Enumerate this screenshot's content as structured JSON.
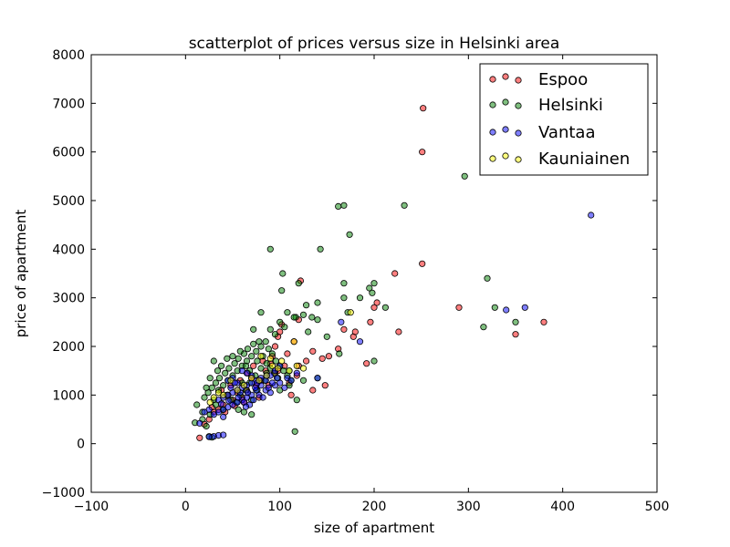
{
  "chart_data": {
    "type": "scatter",
    "title": "scatterplot of prices versus size in Helsinki area",
    "xlabel": "size of apartment",
    "ylabel": "price of apartment",
    "xlim": [
      -100,
      500
    ],
    "ylim": [
      -1000,
      8000
    ],
    "xticks": [
      -100,
      0,
      100,
      200,
      300,
      400,
      500
    ],
    "yticks": [
      -1000,
      0,
      1000,
      2000,
      3000,
      4000,
      5000,
      6000,
      7000,
      8000
    ],
    "xtick_labels": [
      "−100",
      "0",
      "100",
      "200",
      "300",
      "400",
      "500"
    ],
    "ytick_labels": [
      "−1000",
      "0",
      "1000",
      "2000",
      "3000",
      "4000",
      "5000",
      "6000",
      "7000",
      "8000"
    ],
    "grid": false,
    "legend_position": "top-right",
    "series": [
      {
        "name": "Espoo",
        "color": "#ff0000",
        "points": [
          [
            252,
            6900
          ],
          [
            251,
            6000
          ],
          [
            251,
            3700
          ],
          [
            222,
            3500
          ],
          [
            290,
            2800
          ],
          [
            380,
            2500
          ],
          [
            350,
            2250
          ],
          [
            226,
            2300
          ],
          [
            203,
            2900
          ],
          [
            200,
            2800
          ],
          [
            196,
            2500
          ],
          [
            192,
            1650
          ],
          [
            178,
            2200
          ],
          [
            180,
            2300
          ],
          [
            168,
            2350
          ],
          [
            162,
            1950
          ],
          [
            152,
            1800
          ],
          [
            145,
            1750
          ],
          [
            135,
            1900
          ],
          [
            128,
            1700
          ],
          [
            120,
            1600
          ],
          [
            118,
            1400
          ],
          [
            115,
            2100
          ],
          [
            112,
            1000
          ],
          [
            108,
            1850
          ],
          [
            105,
            1600
          ],
          [
            100,
            2300
          ],
          [
            98,
            2200
          ],
          [
            95,
            2000
          ],
          [
            92,
            1800
          ],
          [
            90,
            1650
          ],
          [
            85,
            1500
          ],
          [
            80,
            1300
          ],
          [
            75,
            1200
          ],
          [
            70,
            1350
          ],
          [
            65,
            1100
          ],
          [
            60,
            950
          ],
          [
            55,
            1050
          ],
          [
            50,
            900
          ],
          [
            45,
            1000
          ],
          [
            40,
            800
          ],
          [
            35,
            700
          ],
          [
            30,
            650
          ],
          [
            28,
            750
          ],
          [
            25,
            500
          ],
          [
            20,
            400
          ],
          [
            15,
            120
          ],
          [
            120,
            2550
          ],
          [
            122,
            3350
          ],
          [
            135,
            1100
          ],
          [
            148,
            1200
          ],
          [
            110,
            1250
          ],
          [
            102,
            2450
          ],
          [
            98,
            1500
          ],
          [
            82,
            1700
          ],
          [
            72,
            1600
          ],
          [
            66,
            1450
          ],
          [
            58,
            1300
          ],
          [
            48,
            1200
          ],
          [
            38,
            1100
          ],
          [
            95,
            1450
          ],
          [
            88,
            1200
          ],
          [
            78,
            950
          ],
          [
            62,
            850
          ],
          [
            52,
            780
          ],
          [
            42,
            650
          ]
        ]
      },
      {
        "name": "Helsinki",
        "color": "#008000",
        "points": [
          [
            296,
            5500
          ],
          [
            232,
            4900
          ],
          [
            168,
            4900
          ],
          [
            162,
            4880
          ],
          [
            174,
            4300
          ],
          [
            90,
            4000
          ],
          [
            143,
            4000
          ],
          [
            103,
            3500
          ],
          [
            120,
            3300
          ],
          [
            200,
            3300
          ],
          [
            195,
            3200
          ],
          [
            198,
            3100
          ],
          [
            168,
            3300
          ],
          [
            320,
            3400
          ],
          [
            328,
            2800
          ],
          [
            316,
            2400
          ],
          [
            350,
            2500
          ],
          [
            80,
            2700
          ],
          [
            128,
            2850
          ],
          [
            140,
            2900
          ],
          [
            108,
            2700
          ],
          [
            102,
            3150
          ],
          [
            117,
            2600
          ],
          [
            125,
            2650
          ],
          [
            134,
            2600
          ],
          [
            140,
            2550
          ],
          [
            168,
            3000
          ],
          [
            185,
            3000
          ],
          [
            212,
            2800
          ],
          [
            172,
            2700
          ],
          [
            200,
            1700
          ],
          [
            163,
            1850
          ],
          [
            150,
            2200
          ],
          [
            130,
            2300
          ],
          [
            115,
            2600
          ],
          [
            116,
            250
          ],
          [
            95,
            2250
          ],
          [
            90,
            2350
          ],
          [
            100,
            2500
          ],
          [
            105,
            2400
          ],
          [
            72,
            2350
          ],
          [
            70,
            600
          ],
          [
            25,
            150
          ],
          [
            28,
            130
          ],
          [
            22,
            360
          ],
          [
            10,
            430
          ],
          [
            18,
            650
          ],
          [
            30,
            900
          ],
          [
            35,
            1100
          ],
          [
            40,
            1200
          ],
          [
            45,
            1300
          ],
          [
            50,
            1400
          ],
          [
            55,
            1500
          ],
          [
            60,
            1600
          ],
          [
            65,
            1700
          ],
          [
            70,
            1800
          ],
          [
            75,
            1900
          ],
          [
            80,
            2000
          ],
          [
            85,
            2100
          ],
          [
            88,
            1950
          ],
          [
            92,
            1850
          ],
          [
            96,
            1700
          ],
          [
            100,
            1600
          ],
          [
            104,
            1500
          ],
          [
            108,
            1400
          ],
          [
            112,
            1300
          ],
          [
            20,
            950
          ],
          [
            24,
            1050
          ],
          [
            28,
            1150
          ],
          [
            32,
            1250
          ],
          [
            36,
            1350
          ],
          [
            42,
            1450
          ],
          [
            46,
            1550
          ],
          [
            52,
            1650
          ],
          [
            56,
            1750
          ],
          [
            62,
            1850
          ],
          [
            66,
            1950
          ],
          [
            72,
            2050
          ],
          [
            78,
            2100
          ],
          [
            82,
            1800
          ],
          [
            86,
            1650
          ],
          [
            90,
            1550
          ],
          [
            94,
            1450
          ],
          [
            98,
            1350
          ],
          [
            30,
            1700
          ],
          [
            26,
            1350
          ],
          [
            22,
            1150
          ],
          [
            34,
            1500
          ],
          [
            38,
            1600
          ],
          [
            44,
            1000
          ],
          [
            48,
            900
          ],
          [
            54,
            850
          ],
          [
            58,
            1000
          ],
          [
            64,
            1100
          ],
          [
            68,
            1250
          ],
          [
            74,
            1400
          ],
          [
            84,
            1300
          ],
          [
            44,
            1750
          ],
          [
            50,
            1800
          ],
          [
            58,
            1900
          ],
          [
            64,
            1600
          ],
          [
            68,
            1500
          ],
          [
            76,
            1700
          ],
          [
            80,
            1550
          ],
          [
            86,
            1450
          ],
          [
            60,
            1250
          ],
          [
            40,
            700
          ],
          [
            32,
            800
          ],
          [
            26,
            600
          ],
          [
            18,
            500
          ],
          [
            12,
            800
          ],
          [
            56,
            700
          ],
          [
            62,
            650
          ],
          [
            70,
            900
          ],
          [
            76,
            1100
          ],
          [
            100,
            1100
          ],
          [
            110,
            1200
          ],
          [
            118,
            900
          ],
          [
            125,
            1300
          ],
          [
            140,
            1350
          ],
          [
            110,
            1500
          ]
        ]
      },
      {
        "name": "Vantaa",
        "color": "#0000ff",
        "points": [
          [
            430,
            4700
          ],
          [
            360,
            2800
          ],
          [
            340,
            2750
          ],
          [
            165,
            2500
          ],
          [
            185,
            2100
          ],
          [
            140,
            1350
          ],
          [
            100,
            1600
          ],
          [
            95,
            1500
          ],
          [
            90,
            1400
          ],
          [
            85,
            1300
          ],
          [
            80,
            1200
          ],
          [
            75,
            1100
          ],
          [
            70,
            1000
          ],
          [
            65,
            950
          ],
          [
            60,
            900
          ],
          [
            55,
            850
          ],
          [
            50,
            800
          ],
          [
            45,
            750
          ],
          [
            40,
            700
          ],
          [
            35,
            650
          ],
          [
            30,
            600
          ],
          [
            25,
            700
          ],
          [
            20,
            650
          ],
          [
            15,
            420
          ],
          [
            40,
            550
          ],
          [
            30,
            150
          ],
          [
            35,
            170
          ],
          [
            40,
            180
          ],
          [
            25,
            140
          ],
          [
            45,
            1300
          ],
          [
            50,
            1350
          ],
          [
            55,
            1250
          ],
          [
            60,
            1150
          ],
          [
            65,
            1200
          ],
          [
            70,
            1250
          ],
          [
            75,
            1300
          ],
          [
            80,
            1350
          ],
          [
            85,
            1100
          ],
          [
            90,
            1050
          ],
          [
            95,
            1200
          ],
          [
            100,
            1250
          ],
          [
            105,
            1150
          ],
          [
            108,
            1350
          ],
          [
            112,
            1300
          ],
          [
            118,
            1450
          ],
          [
            70,
            1400
          ],
          [
            65,
            1450
          ],
          [
            60,
            1500
          ],
          [
            55,
            1100
          ],
          [
            50,
            1050
          ],
          [
            45,
            1000
          ],
          [
            40,
            950
          ],
          [
            35,
            900
          ],
          [
            48,
            1150
          ],
          [
            52,
            1250
          ],
          [
            58,
            1050
          ],
          [
            62,
            850
          ],
          [
            68,
            800
          ],
          [
            72,
            900
          ],
          [
            78,
            1000
          ],
          [
            82,
            950
          ],
          [
            88,
            1150
          ],
          [
            92,
            1250
          ],
          [
            97,
            1350
          ],
          [
            74,
            1150
          ],
          [
            66,
            1050
          ],
          [
            56,
            950
          ],
          [
            46,
            880
          ],
          [
            38,
            820
          ],
          [
            64,
            760
          ],
          [
            76,
            1250
          ],
          [
            86,
            1400
          ]
        ]
      },
      {
        "name": "Kauniainen",
        "color": "#ffff00",
        "points": [
          [
            110,
            1500
          ],
          [
            102,
            1700
          ],
          [
            92,
            1600
          ],
          [
            86,
            1400
          ],
          [
            78,
            1300
          ],
          [
            70,
            1350
          ],
          [
            62,
            1200
          ],
          [
            55,
            1100
          ],
          [
            48,
            1300
          ],
          [
            40,
            1000
          ],
          [
            35,
            1050
          ],
          [
            30,
            950
          ],
          [
            26,
            850
          ],
          [
            118,
            1600
          ],
          [
            125,
            1550
          ],
          [
            115,
            2100
          ],
          [
            175,
            2700
          ],
          [
            80,
            1800
          ],
          [
            90,
            1750
          ],
          [
            98,
            1550
          ]
        ]
      }
    ]
  }
}
